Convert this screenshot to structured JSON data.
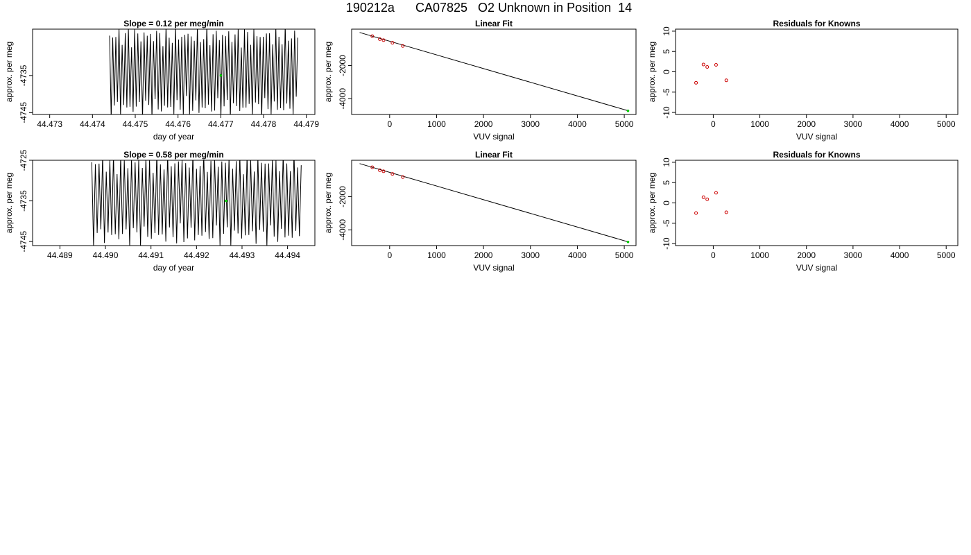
{
  "page": {
    "title": "190212a      CA07825   O2 Unknown in Position  14"
  },
  "chart_data": [
    {
      "type": "line",
      "title": "Slope =  0.12  per meg/min",
      "xlabel": "day of year",
      "ylabel": "approx. per meg",
      "xlim": [
        44.4726,
        44.4792
      ],
      "ylim": [
        -4745.5,
        -4722.5
      ],
      "xticks": [
        "44.473",
        "44.474",
        "44.475",
        "44.476",
        "44.477",
        "44.478",
        "44.479"
      ],
      "yticks": [
        "-4735",
        "-4745"
      ],
      "trace": {
        "x_start": 44.4744,
        "x_end": 44.4788,
        "cycles": 60,
        "y_mid": -4734,
        "amplitude": 13
      },
      "highlight_point": {
        "x": 44.477,
        "y": -4735,
        "color": "#00cc00"
      }
    },
    {
      "type": "scatter",
      "title": "Linear Fit",
      "xlabel": "VUV signal",
      "ylabel": "approx. per meg",
      "xlim": [
        -810,
        5250
      ],
      "ylim": [
        -4950,
        200
      ],
      "xticks": [
        "0",
        "1000",
        "2000",
        "3000",
        "4000",
        "5000"
      ],
      "yticks": [
        "-2000",
        "-4000"
      ],
      "fit_line": {
        "x": [
          -640,
          5100
        ],
        "y": [
          -0.7,
          -4740
        ]
      },
      "points": [
        {
          "x": -370,
          "y": -224
        },
        {
          "x": -210,
          "y": -402
        },
        {
          "x": -130,
          "y": -465
        },
        {
          "x": 60,
          "y": -625
        },
        {
          "x": 280,
          "y": -815
        }
      ],
      "point_color": "#cc0000",
      "unknown_point": {
        "x": 5080,
        "y": -4730,
        "color": "#00cc00"
      }
    },
    {
      "type": "scatter",
      "title": "Residuals for Knowns",
      "xlabel": "VUV signal",
      "ylabel": "approx. per meg",
      "xlim": [
        -810,
        5250
      ],
      "ylim": [
        -10.5,
        10.5
      ],
      "xticks": [
        "0",
        "1000",
        "2000",
        "3000",
        "4000",
        "5000"
      ],
      "yticks": [
        "-10",
        "-5",
        "0",
        "5",
        "10"
      ],
      "points": [
        {
          "x": -370,
          "y": -2.7
        },
        {
          "x": -210,
          "y": 1.8
        },
        {
          "x": -130,
          "y": 1.2
        },
        {
          "x": 60,
          "y": 1.7
        },
        {
          "x": 280,
          "y": -2.1
        }
      ],
      "point_color": "#cc0000"
    },
    {
      "type": "line",
      "title": "Slope =  0.58  per meg/min",
      "xlabel": "day of year",
      "ylabel": "approx. per meg",
      "xlim": [
        44.4884,
        44.4946
      ],
      "ylim": [
        -4746,
        -4725
      ],
      "xticks": [
        "44.489",
        "44.490",
        "44.491",
        "44.492",
        "44.493",
        "44.494"
      ],
      "yticks": [
        "-4725",
        "-4735",
        "-4745"
      ],
      "trace": {
        "x_start": 44.4897,
        "x_end": 44.4943,
        "cycles": 58,
        "y_mid": -4734.5,
        "amplitude": 12
      },
      "highlight_point": {
        "x": 44.49265,
        "y": -4735,
        "color": "#00cc00"
      }
    },
    {
      "type": "scatter",
      "title": "Linear Fit",
      "xlabel": "VUV signal",
      "ylabel": "approx. per meg",
      "xlim": [
        -810,
        5250
      ],
      "ylim": [
        -4950,
        200
      ],
      "xticks": [
        "0",
        "1000",
        "2000",
        "3000",
        "4000",
        "5000"
      ],
      "yticks": [
        "-2000",
        "-4000"
      ],
      "fit_line": {
        "x": [
          -640,
          5100
        ],
        "y": [
          -0.7,
          -4740
        ]
      },
      "points": [
        {
          "x": -370,
          "y": -224
        },
        {
          "x": -210,
          "y": -402
        },
        {
          "x": -130,
          "y": -465
        },
        {
          "x": 60,
          "y": -625
        },
        {
          "x": 280,
          "y": -815
        }
      ],
      "point_color": "#cc0000",
      "unknown_point": {
        "x": 5080,
        "y": -4730,
        "color": "#00cc00"
      }
    },
    {
      "type": "scatter",
      "title": "Residuals for Knowns",
      "xlabel": "VUV signal",
      "ylabel": "approx. per meg",
      "xlim": [
        -810,
        5250
      ],
      "ylim": [
        -10.5,
        10.5
      ],
      "xticks": [
        "0",
        "1000",
        "2000",
        "3000",
        "4000",
        "5000"
      ],
      "yticks": [
        "-10",
        "-5",
        "0",
        "5",
        "10"
      ],
      "points": [
        {
          "x": -370,
          "y": -2.5
        },
        {
          "x": -210,
          "y": 1.4
        },
        {
          "x": -130,
          "y": 0.9
        },
        {
          "x": 60,
          "y": 2.5
        },
        {
          "x": 280,
          "y": -2.3
        }
      ],
      "point_color": "#cc0000"
    }
  ]
}
